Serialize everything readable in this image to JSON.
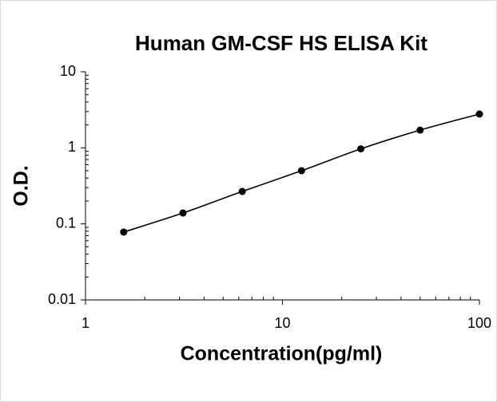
{
  "chart_data": {
    "type": "scatter",
    "title": "Human GM-CSF HS ELISA Kit",
    "x_label": "Concentration(pg/ml)",
    "y_label": "O.D.",
    "x": [
      1.5625,
      3.125,
      6.25,
      12.5,
      25,
      50,
      100
    ],
    "series": [
      {
        "color": "#000000",
        "values": [
          0.078,
          0.139,
          0.267,
          0.5,
          0.97,
          1.71,
          2.78
        ]
      }
    ],
    "xscale": "log",
    "yscale": "log",
    "xlim": [
      1,
      100
    ],
    "xticks": [
      1,
      10,
      100
    ],
    "ylim": [
      0.01,
      10
    ],
    "yticks": [
      0.01,
      0.1,
      1,
      10
    ],
    "grid": false,
    "fit_line": true
  }
}
